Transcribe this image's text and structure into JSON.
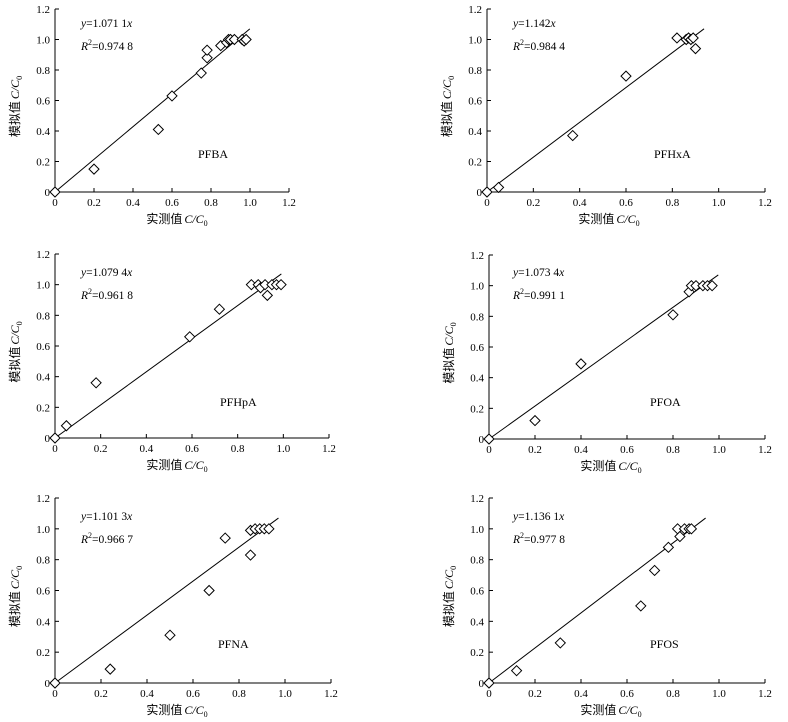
{
  "chart_data": [
    {
      "type": "scatter",
      "label": "PFBA",
      "equation": "y=1.071 1x",
      "eq_y": "y",
      "eq_rest": "=1.071 1",
      "eq_x": "x",
      "r2": "R²=0.974 8",
      "r2_R": "R",
      "r2_sup": "2",
      "r2_val": "=0.974 8",
      "slope": 1.0711,
      "x_range": [
        0,
        1.2
      ],
      "y_range": [
        0,
        1.2
      ],
      "x_ticks": [
        "0",
        "0.2",
        "0.4",
        "0.6",
        "0.8",
        "1.0",
        "1.2"
      ],
      "y_ticks": [
        "0",
        "0.2",
        "0.4",
        "0.6",
        "0.8",
        "1.0",
        "1.2"
      ],
      "xlabel": "实测值 C/C₀",
      "ylabel": "模拟值 C/C₀",
      "xlabel_cn": "实测值",
      "xlabel_it": "C/C",
      "xlabel_sub": "0",
      "ylabel_cn": "模拟值",
      "ylabel_it": "C/C",
      "ylabel_sub": "0",
      "points": [
        {
          "x": 0,
          "y": 0
        },
        {
          "x": 0.2,
          "y": 0.15
        },
        {
          "x": 0.53,
          "y": 0.41
        },
        {
          "x": 0.6,
          "y": 0.63
        },
        {
          "x": 0.75,
          "y": 0.78
        },
        {
          "x": 0.78,
          "y": 0.88
        },
        {
          "x": 0.78,
          "y": 0.93
        },
        {
          "x": 0.85,
          "y": 0.96
        },
        {
          "x": 0.88,
          "y": 0.98
        },
        {
          "x": 0.89,
          "y": 1.0
        },
        {
          "x": 0.9,
          "y": 1.0
        },
        {
          "x": 0.92,
          "y": 1.0
        },
        {
          "x": 0.96,
          "y": 1.0
        },
        {
          "x": 0.97,
          "y": 0.99
        },
        {
          "x": 0.98,
          "y": 1.0
        }
      ]
    },
    {
      "type": "scatter",
      "label": "PFHxA",
      "equation": "y=1.142x",
      "eq_y": "y",
      "eq_rest": "=1.142",
      "eq_x": "x",
      "r2": "R²=0.984 4",
      "r2_R": "R",
      "r2_sup": "2",
      "r2_val": "=0.984 4",
      "slope": 1.142,
      "x_range": [
        0,
        1.2
      ],
      "y_range": [
        0,
        1.2
      ],
      "x_ticks": [
        "0",
        "0.2",
        "0.4",
        "0.6",
        "0.8",
        "1.0",
        "1.2"
      ],
      "y_ticks": [
        "0",
        "0.2",
        "0.4",
        "0.6",
        "0.8",
        "1.0",
        "1.2"
      ],
      "xlabel": "实测值 C/C₀",
      "ylabel": "模拟值 C/C₀",
      "xlabel_cn": "实测值",
      "xlabel_it": "C/C",
      "xlabel_sub": "0",
      "ylabel_cn": "模拟值",
      "ylabel_it": "C/C",
      "ylabel_sub": "0",
      "points": [
        {
          "x": 0,
          "y": 0
        },
        {
          "x": 0.05,
          "y": 0.03
        },
        {
          "x": 0.37,
          "y": 0.37
        },
        {
          "x": 0.6,
          "y": 0.76
        },
        {
          "x": 0.82,
          "y": 1.01
        },
        {
          "x": 0.86,
          "y": 1.0
        },
        {
          "x": 0.87,
          "y": 1.01
        },
        {
          "x": 0.88,
          "y": 1.0
        },
        {
          "x": 0.89,
          "y": 1.01
        },
        {
          "x": 0.9,
          "y": 0.94
        }
      ]
    },
    {
      "type": "scatter",
      "label": "PFHpA",
      "equation": "y=1.079 4x",
      "eq_y": "y",
      "eq_rest": "=1.079 4",
      "eq_x": "x",
      "r2": "R²=0.961 8",
      "r2_R": "R",
      "r2_sup": "2",
      "r2_val": "=0.961 8",
      "slope": 1.0794,
      "x_range": [
        0,
        1.2
      ],
      "y_range": [
        0,
        1.2
      ],
      "x_ticks": [
        "0",
        "0.2",
        "0.4",
        "0.6",
        "0.8",
        "1.0",
        "1.2"
      ],
      "y_ticks": [
        "0",
        "0.2",
        "0.4",
        "0.6",
        "0.8",
        "1.0",
        "1.2"
      ],
      "xlabel": "实测值 C/C₀",
      "ylabel": "模拟值 C/C₀",
      "xlabel_cn": "实测值",
      "xlabel_it": "C/C",
      "xlabel_sub": "0",
      "ylabel_cn": "模拟值",
      "ylabel_it": "C/C",
      "ylabel_sub": "0",
      "points": [
        {
          "x": 0,
          "y": 0
        },
        {
          "x": 0.05,
          "y": 0.08
        },
        {
          "x": 0.18,
          "y": 0.36
        },
        {
          "x": 0.59,
          "y": 0.66
        },
        {
          "x": 0.72,
          "y": 0.84
        },
        {
          "x": 0.86,
          "y": 1.0
        },
        {
          "x": 0.89,
          "y": 1.0
        },
        {
          "x": 0.9,
          "y": 0.98
        },
        {
          "x": 0.92,
          "y": 1.0
        },
        {
          "x": 0.93,
          "y": 0.93
        },
        {
          "x": 0.95,
          "y": 1.0
        },
        {
          "x": 0.97,
          "y": 1.0
        },
        {
          "x": 0.99,
          "y": 1.0
        }
      ]
    },
    {
      "type": "scatter",
      "label": "PFOA",
      "equation": "y=1.073 4x",
      "eq_y": "y",
      "eq_rest": "=1.073 4",
      "eq_x": "x",
      "r2": "R²=0.991 1",
      "r2_R": "R",
      "r2_sup": "2",
      "r2_val": "=0.991 1",
      "slope": 1.0734,
      "x_range": [
        0,
        1.2
      ],
      "y_range": [
        0,
        1.2
      ],
      "x_ticks": [
        "0",
        "0.2",
        "0.4",
        "0.6",
        "0.8",
        "1.0",
        "1.2"
      ],
      "y_ticks": [
        "0",
        "0.2",
        "0.4",
        "0.6",
        "0.8",
        "1.0",
        "1.2"
      ],
      "xlabel": "实测值 C/C₀",
      "ylabel": "模拟值 C/C₀",
      "xlabel_cn": "实测值",
      "xlabel_it": "C/C",
      "xlabel_sub": "0",
      "ylabel_cn": "模拟值",
      "ylabel_it": "C/C",
      "ylabel_sub": "0",
      "points": [
        {
          "x": 0,
          "y": 0
        },
        {
          "x": 0.2,
          "y": 0.12
        },
        {
          "x": 0.4,
          "y": 0.49
        },
        {
          "x": 0.8,
          "y": 0.81
        },
        {
          "x": 0.87,
          "y": 0.96
        },
        {
          "x": 0.88,
          "y": 1.0
        },
        {
          "x": 0.9,
          "y": 1.0
        },
        {
          "x": 0.93,
          "y": 1.0
        },
        {
          "x": 0.95,
          "y": 1.0
        },
        {
          "x": 0.97,
          "y": 1.0
        }
      ]
    },
    {
      "type": "scatter",
      "label": "PFNA",
      "equation": "y=1.101 3x",
      "eq_y": "y",
      "eq_rest": "=1.101 3",
      "eq_x": "x",
      "r2": "R²=0.966 7",
      "r2_R": "R",
      "r2_sup": "2",
      "r2_val": "=0.966 7",
      "slope": 1.1013,
      "x_range": [
        0,
        1.2
      ],
      "y_range": [
        0,
        1.2
      ],
      "x_ticks": [
        "0",
        "0.2",
        "0.4",
        "0.6",
        "0.8",
        "1.0",
        "1.2"
      ],
      "y_ticks": [
        "0",
        "0.2",
        "0.4",
        "0.6",
        "0.8",
        "1.0",
        "1.2"
      ],
      "xlabel": "实测值 C/C₀",
      "ylabel": "模拟值 C/C₀",
      "xlabel_cn": "实测值",
      "xlabel_it": "C/C",
      "xlabel_sub": "0",
      "ylabel_cn": "模拟值",
      "ylabel_it": "C/C",
      "ylabel_sub": "0",
      "points": [
        {
          "x": 0,
          "y": 0
        },
        {
          "x": 0.24,
          "y": 0.09
        },
        {
          "x": 0.5,
          "y": 0.31
        },
        {
          "x": 0.67,
          "y": 0.6
        },
        {
          "x": 0.74,
          "y": 0.94
        },
        {
          "x": 0.85,
          "y": 0.83
        },
        {
          "x": 0.85,
          "y": 0.99
        },
        {
          "x": 0.87,
          "y": 1.0
        },
        {
          "x": 0.89,
          "y": 1.0
        },
        {
          "x": 0.91,
          "y": 1.0
        },
        {
          "x": 0.93,
          "y": 1.0
        }
      ]
    },
    {
      "type": "scatter",
      "label": "PFOS",
      "equation": "y=1.136 1x",
      "eq_y": "y",
      "eq_rest": "=1.136 1",
      "eq_x": "x",
      "r2": "R²=0.977 8",
      "r2_R": "R",
      "r2_sup": "2",
      "r2_val": "=0.977 8",
      "slope": 1.1361,
      "x_range": [
        0,
        1.2
      ],
      "y_range": [
        0,
        1.2
      ],
      "x_ticks": [
        "0",
        "0.2",
        "0.4",
        "0.6",
        "0.8",
        "1.0",
        "1.2"
      ],
      "y_ticks": [
        "0",
        "0.2",
        "0.4",
        "0.6",
        "0.8",
        "1.0",
        "1.2"
      ],
      "xlabel": "实测值 C/C₀",
      "ylabel": "模拟值 C/C₀",
      "xlabel_cn": "实测值",
      "xlabel_it": "C/C",
      "xlabel_sub": "0",
      "ylabel_cn": "模拟值",
      "ylabel_it": "C/C",
      "ylabel_sub": "0",
      "points": [
        {
          "x": 0,
          "y": 0
        },
        {
          "x": 0.12,
          "y": 0.08
        },
        {
          "x": 0.31,
          "y": 0.26
        },
        {
          "x": 0.66,
          "y": 0.5
        },
        {
          "x": 0.72,
          "y": 0.73
        },
        {
          "x": 0.78,
          "y": 0.88
        },
        {
          "x": 0.82,
          "y": 1.0
        },
        {
          "x": 0.83,
          "y": 0.95
        },
        {
          "x": 0.85,
          "y": 1.0
        },
        {
          "x": 0.87,
          "y": 1.0
        },
        {
          "x": 0.88,
          "y": 1.0
        }
      ]
    }
  ]
}
